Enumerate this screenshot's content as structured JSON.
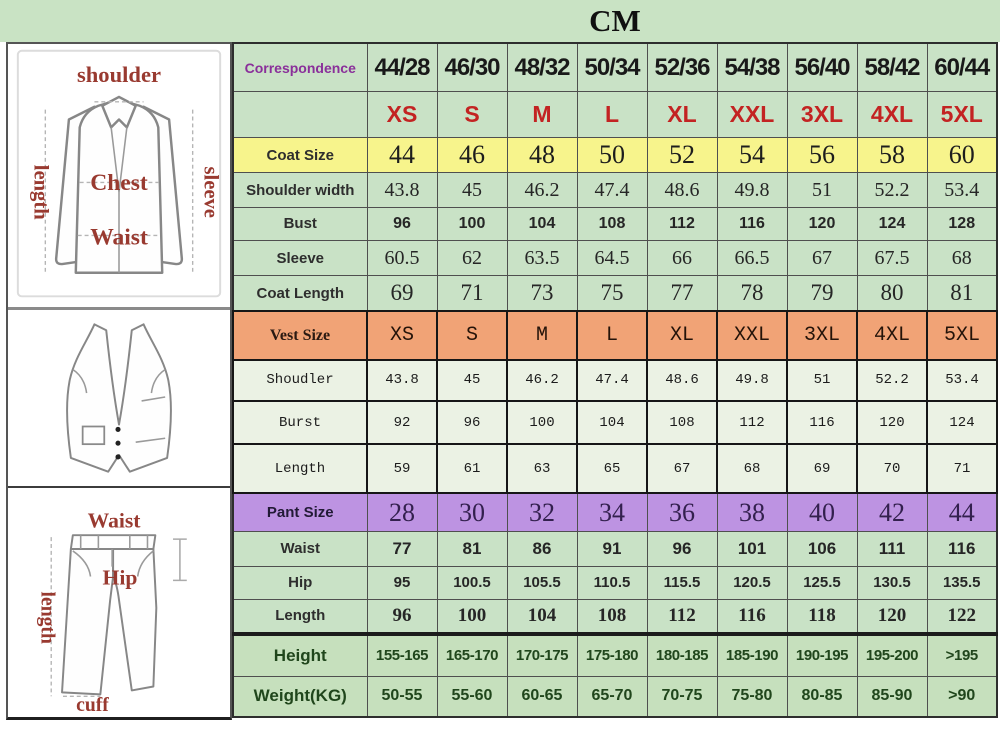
{
  "title": "CM",
  "colors": {
    "band_green": "#c9e3c4",
    "cell_green": "#c9e2c6",
    "vest_row_bg": "#ebf2e4",
    "coat_size_yellow": "#f7f48c",
    "vest_size_salmon": "#f1a376",
    "pant_size_purple": "#bd93e2",
    "body_rows_green": "#c6e0bd",
    "red_size_text": "#c32322",
    "correspondence_purple": "#8a2f9a",
    "diagram_label_red": "#993a30",
    "height_weight_text": "#20461c"
  },
  "diagrams": {
    "jacket": {
      "shoulder": "shoulder",
      "length": "length",
      "sleeve": "sleeve",
      "chest": "Chest",
      "waist": "Waist"
    },
    "pants": {
      "waist": "Waist",
      "length": "length",
      "hip": "Hip",
      "cuff": "cuff"
    }
  },
  "chart_data": {
    "type": "table",
    "title": "CM",
    "unit": "CM",
    "columns_label": "Correspondence",
    "rows": [
      {
        "kind": "correspondence",
        "label": "Correspondence",
        "values": [
          "44/28",
          "46/30",
          "48/32",
          "50/34",
          "52/36",
          "54/38",
          "56/40",
          "58/42",
          "60/44"
        ]
      },
      {
        "kind": "size-letters",
        "label": "",
        "values": [
          "XS",
          "S",
          "M",
          "L",
          "XL",
          "XXL",
          "3XL",
          "4XL",
          "5XL"
        ]
      },
      {
        "kind": "coat-size",
        "label": "Coat Size",
        "values": [
          "44",
          "46",
          "48",
          "50",
          "52",
          "54",
          "56",
          "58",
          "60"
        ]
      },
      {
        "kind": "shoulder-width",
        "label": "Shoulder width",
        "values": [
          "43.8",
          "45",
          "46.2",
          "47.4",
          "48.6",
          "49.8",
          "51",
          "52.2",
          "53.4"
        ]
      },
      {
        "kind": "bust",
        "label": "Bust",
        "values": [
          "96",
          "100",
          "104",
          "108",
          "112",
          "116",
          "120",
          "124",
          "128"
        ]
      },
      {
        "kind": "sleeve",
        "label": "Sleeve",
        "values": [
          "60.5",
          "62",
          "63.5",
          "64.5",
          "66",
          "66.5",
          "67",
          "67.5",
          "68"
        ]
      },
      {
        "kind": "coat-length",
        "label": "Coat Length",
        "values": [
          "69",
          "71",
          "73",
          "75",
          "77",
          "78",
          "79",
          "80",
          "81"
        ]
      },
      {
        "kind": "vest-size",
        "label": "Vest Size",
        "values": [
          "XS",
          "S",
          "M",
          "L",
          "XL",
          "XXL",
          "3XL",
          "4XL",
          "5XL"
        ]
      },
      {
        "kind": "vest-shoulder",
        "label": "Shoudler",
        "values": [
          "43.8",
          "45",
          "46.2",
          "47.4",
          "48.6",
          "49.8",
          "51",
          "52.2",
          "53.4"
        ]
      },
      {
        "kind": "vest-burst",
        "label": "Burst",
        "values": [
          "92",
          "96",
          "100",
          "104",
          "108",
          "112",
          "116",
          "120",
          "124"
        ]
      },
      {
        "kind": "vest-length",
        "label": "Length",
        "values": [
          "59",
          "61",
          "63",
          "65",
          "67",
          "68",
          "69",
          "70",
          "71"
        ]
      },
      {
        "kind": "pant-size",
        "label": "Pant Size",
        "values": [
          "28",
          "30",
          "32",
          "34",
          "36",
          "38",
          "40",
          "42",
          "44"
        ]
      },
      {
        "kind": "waist",
        "label": "Waist",
        "values": [
          "77",
          "81",
          "86",
          "91",
          "96",
          "101",
          "106",
          "111",
          "116"
        ]
      },
      {
        "kind": "hip",
        "label": "Hip",
        "values": [
          "95",
          "100.5",
          "105.5",
          "110.5",
          "115.5",
          "120.5",
          "125.5",
          "130.5",
          "135.5"
        ]
      },
      {
        "kind": "pant-length",
        "label": "Length",
        "values": [
          "96",
          "100",
          "104",
          "108",
          "112",
          "116",
          "118",
          "120",
          "122"
        ]
      },
      {
        "kind": "height",
        "label": "Height",
        "values": [
          "155-165",
          "165-170",
          "170-175",
          "175-180",
          "180-185",
          "185-190",
          "190-195",
          "195-200",
          ">195"
        ]
      },
      {
        "kind": "weight",
        "label": "Weight(KG)",
        "values": [
          "50-55",
          "55-60",
          "60-65",
          "65-70",
          "70-75",
          "75-80",
          "80-85",
          "85-90",
          ">90"
        ]
      }
    ]
  }
}
